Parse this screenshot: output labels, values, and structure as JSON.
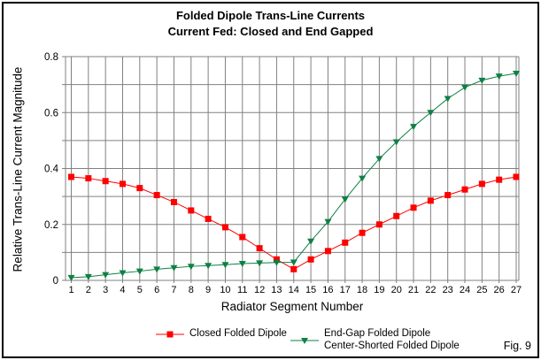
{
  "figure": {
    "title": "Folded Dipole Trans-Line Currents",
    "subtitle": "Current Fed: Closed and End Gapped",
    "fig_label": "Fig. 9"
  },
  "chart_data": {
    "type": "line",
    "title": "Folded Dipole Trans-Line Currents",
    "subtitle": "Current Fed: Closed and End Gapped",
    "xlabel": "Radiator Segment Number",
    "ylabel": "Relative Trans-Line Current Magnitude",
    "x": [
      1,
      2,
      3,
      4,
      5,
      6,
      7,
      8,
      9,
      10,
      11,
      12,
      13,
      14,
      15,
      16,
      17,
      18,
      19,
      20,
      21,
      22,
      23,
      24,
      25,
      26,
      27
    ],
    "xlim": [
      1,
      27
    ],
    "ylim": [
      0,
      0.8
    ],
    "ytick_step": 0.1,
    "ytick_labels": [
      {
        "value": 0.0,
        "label": "0"
      },
      {
        "value": 0.2,
        "label": "0.2"
      },
      {
        "value": 0.4,
        "label": "0.4"
      },
      {
        "value": 0.6,
        "label": "0.6"
      },
      {
        "value": 0.8,
        "label": "0.8"
      }
    ],
    "grid": true,
    "grid_color": "#808080",
    "legend_position": "bottom",
    "series": [
      {
        "name": "Closed Folded Dipole",
        "color": "#ff0000",
        "marker": "square",
        "values": [
          0.37,
          0.365,
          0.355,
          0.345,
          0.33,
          0.305,
          0.28,
          0.25,
          0.22,
          0.19,
          0.155,
          0.115,
          0.075,
          0.04,
          0.075,
          0.105,
          0.135,
          0.17,
          0.2,
          0.23,
          0.26,
          0.285,
          0.305,
          0.325,
          0.345,
          0.36,
          0.37
        ]
      },
      {
        "name": "End-Gap Folded Dipole",
        "name_line2": "Center-Shorted Folded Dipole",
        "color": "#0e8044",
        "marker": "triangle-down",
        "values": [
          0.01,
          0.013,
          0.02,
          0.027,
          0.033,
          0.04,
          0.045,
          0.05,
          0.053,
          0.056,
          0.06,
          0.062,
          0.064,
          0.065,
          0.14,
          0.21,
          0.29,
          0.365,
          0.435,
          0.495,
          0.55,
          0.6,
          0.65,
          0.69,
          0.715,
          0.73,
          0.74
        ]
      }
    ]
  }
}
